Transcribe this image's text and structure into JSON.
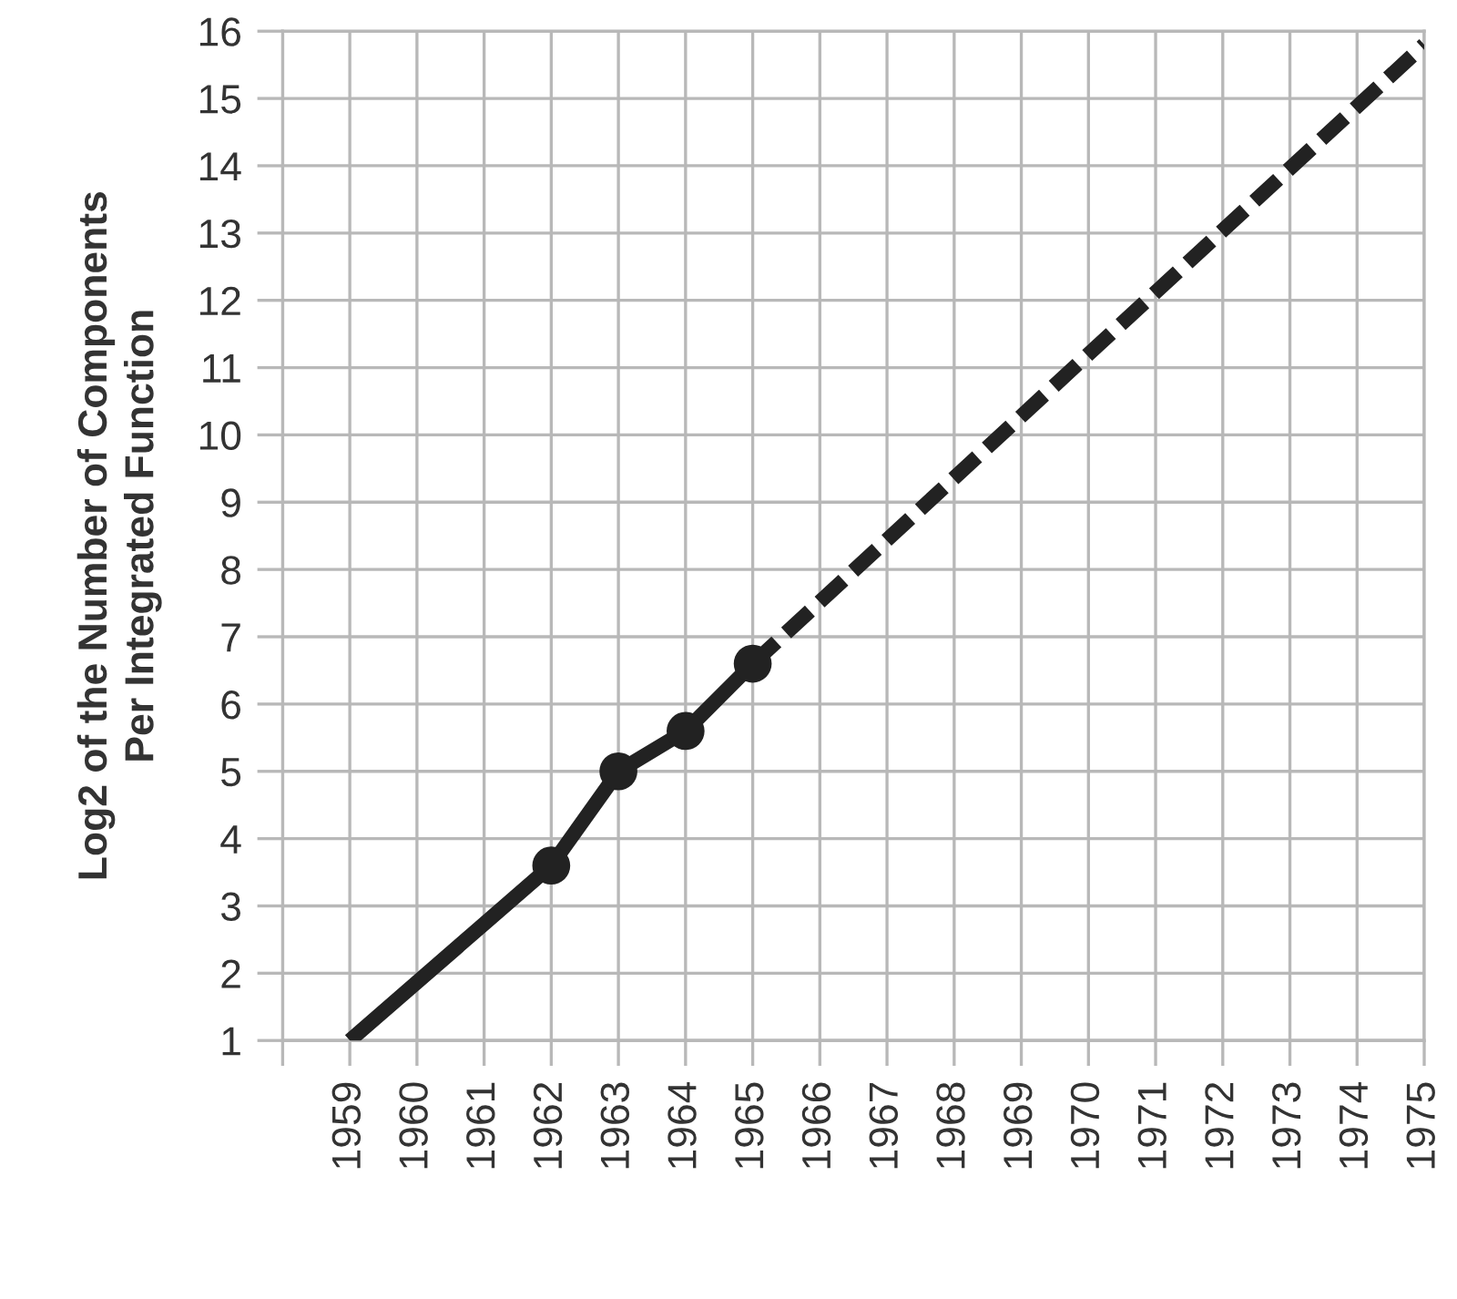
{
  "chart_data": {
    "type": "line",
    "ylabel": "Log2 of the Number of Components\nPer Integrated Function",
    "xlim": [
      1958,
      1975
    ],
    "xticks": [
      {
        "value": 1958,
        "label": null
      },
      1959,
      1960,
      1961,
      1962,
      1963,
      1964,
      1965,
      1966,
      1967,
      1968,
      1969,
      1970,
      1971,
      1972,
      1973,
      1974,
      1975
    ],
    "ylim": [
      1,
      16
    ],
    "yticks": [
      1,
      2,
      3,
      4,
      5,
      6,
      7,
      8,
      9,
      10,
      11,
      12,
      13,
      14,
      15,
      16
    ],
    "grid": true,
    "series": [
      {
        "color": "#222222",
        "x": [
          1959,
          1962,
          1963,
          1964,
          1965
        ],
        "values": [
          1.0,
          3.6,
          5.0,
          5.6,
          6.6
        ],
        "marker": "none",
        "line_style": "solid"
      },
      {
        "type": "scatter",
        "color": "#222222",
        "x": [
          1962,
          1963,
          1964,
          1965
        ],
        "values": [
          3.6,
          5.0,
          5.6,
          6.6
        ],
        "marker": "circle"
      },
      {
        "type": "line",
        "color": "#222222",
        "x": [
          1965,
          1975
        ],
        "values": [
          6.6,
          15.8
        ],
        "marker": "none",
        "line_style": "dashed"
      }
    ]
  }
}
